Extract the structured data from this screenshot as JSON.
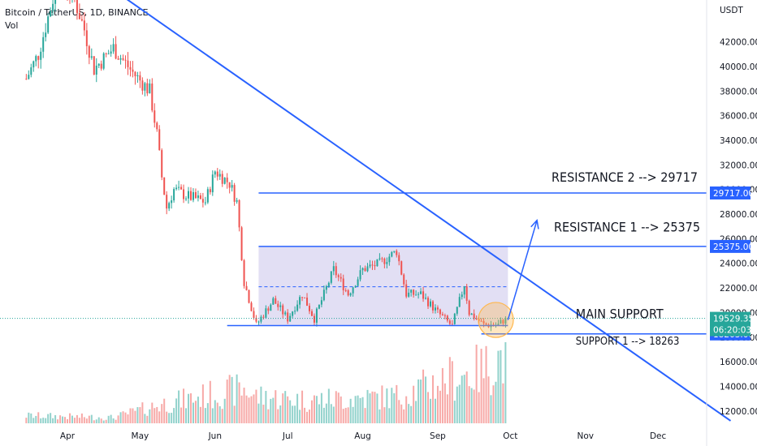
{
  "header": {
    "title": "Bitcoin / TetherUS, 1D, BINANCE",
    "volume_label": "Vol"
  },
  "chart_data": {
    "type": "candlestick",
    "symbol": "Bitcoin / TetherUS",
    "interval": "1D",
    "exchange": "BINANCE",
    "currency": "USDT",
    "x_ticks": [
      "Apr",
      "May",
      "Jun",
      "Jul",
      "Aug",
      "Sep",
      "Oct",
      "Nov",
      "Dec"
    ],
    "y_ticks": [
      "12000.00",
      "14000.00",
      "16000.00",
      "18000.00",
      "20000.00",
      "22000.00",
      "24000.00",
      "26000.00",
      "28000.00",
      "30000.00",
      "32000.00",
      "34000.00",
      "36000.00",
      "38000.00",
      "40000.00",
      "42000.00"
    ],
    "ylim": [
      11000,
      45400
    ],
    "price_path": [
      [
        "2022-03-15",
        39000
      ],
      [
        "2022-03-20",
        41000
      ],
      [
        "2022-03-28",
        47000
      ],
      [
        "2022-04-03",
        46000
      ],
      [
        "2022-04-08",
        43000
      ],
      [
        "2022-04-12",
        39800
      ],
      [
        "2022-04-20",
        41500
      ],
      [
        "2022-04-28",
        39500
      ],
      [
        "2022-05-05",
        38000
      ],
      [
        "2022-05-08",
        34500
      ],
      [
        "2022-05-10",
        31000
      ],
      [
        "2022-05-12",
        28500
      ],
      [
        "2022-05-15",
        30000
      ],
      [
        "2022-05-20",
        29500
      ],
      [
        "2022-05-28",
        29000
      ],
      [
        "2022-06-01",
        31500
      ],
      [
        "2022-06-07",
        30500
      ],
      [
        "2022-06-10",
        29000
      ],
      [
        "2022-06-13",
        22500
      ],
      [
        "2022-06-18",
        19000
      ],
      [
        "2022-06-25",
        21000
      ],
      [
        "2022-07-01",
        19500
      ],
      [
        "2022-07-07",
        21500
      ],
      [
        "2022-07-12",
        19500
      ],
      [
        "2022-07-20",
        23500
      ],
      [
        "2022-07-26",
        21500
      ],
      [
        "2022-08-01",
        23500
      ],
      [
        "2022-08-08",
        24000
      ],
      [
        "2022-08-15",
        25000
      ],
      [
        "2022-08-19",
        21500
      ],
      [
        "2022-08-25",
        21500
      ],
      [
        "2022-09-01",
        20000
      ],
      [
        "2022-09-07",
        18900
      ],
      [
        "2022-09-12",
        22300
      ],
      [
        "2022-09-14",
        20000
      ],
      [
        "2022-09-20",
        19000
      ],
      [
        "2022-09-26",
        19000
      ],
      [
        "2022-09-29",
        19529
      ]
    ],
    "volume_path": [
      [
        "2022-03-15",
        2
      ],
      [
        "2022-04-20",
        1.5
      ],
      [
        "2022-05-10",
        5
      ],
      [
        "2022-06-13",
        9
      ],
      [
        "2022-06-18",
        7
      ],
      [
        "2022-07-10",
        6
      ],
      [
        "2022-08-15",
        7
      ],
      [
        "2022-09-07",
        12
      ],
      [
        "2022-09-20",
        14
      ],
      [
        "2022-09-29",
        18
      ]
    ],
    "volume_max": 18,
    "horizontal_levels": [
      {
        "price": 29717,
        "label": "29717.00",
        "color": "#2962ff",
        "from": "2022-06-19",
        "to": "2022-12-31",
        "extends_to_axis": true
      },
      {
        "price": 25375,
        "label": "25375.00",
        "color": "#2962ff",
        "from": "2022-06-19",
        "to": "2022-12-31",
        "extends_to_axis": true
      },
      {
        "price": 18942.01,
        "label": "18942.01",
        "color": "#2962ff",
        "from": "2022-06-06",
        "to": "2022-09-30",
        "extends_to_axis": false
      },
      {
        "price": 18263,
        "label": "18263.00",
        "color": "#2962ff",
        "from": "2022-09-19",
        "to": "2022-12-31",
        "extends_to_axis": true
      }
    ],
    "current_price": {
      "value": 19529.35,
      "label": "19529.35",
      "countdown": "06:20:03",
      "color": "#26a69a"
    },
    "range_box": {
      "top": 25375,
      "bottom": 18942,
      "mid": 22100,
      "from": "2022-06-19",
      "to": "2022-09-30",
      "fill": "#d6d2f0"
    },
    "trendline": {
      "from": [
        "2022-04-18",
        46500
      ],
      "to": [
        "2022-12-31",
        11200
      ],
      "color": "#2962ff"
    },
    "projection_arrow": {
      "from": [
        "2022-09-30",
        19400
      ],
      "to": [
        "2022-10-12",
        27500
      ],
      "color": "#2962ff"
    },
    "highlight_circle": {
      "center": [
        "2022-09-25",
        19400
      ],
      "radius_days": 5,
      "color": "#ffb74d"
    },
    "annotations": [
      {
        "text": "RESISTANCE 2 --> 29717",
        "date": "2022-10-18",
        "price": 30650
      },
      {
        "text": "RESISTANCE 1 --> 25375",
        "date": "2022-10-19",
        "price": 26600
      },
      {
        "text": "MAIN SUPPORT",
        "date": "2022-10-28",
        "price": 19550
      },
      {
        "text": "SUPPORT 1 --> 18263",
        "date": "2022-10-28",
        "price": 17400
      }
    ]
  }
}
